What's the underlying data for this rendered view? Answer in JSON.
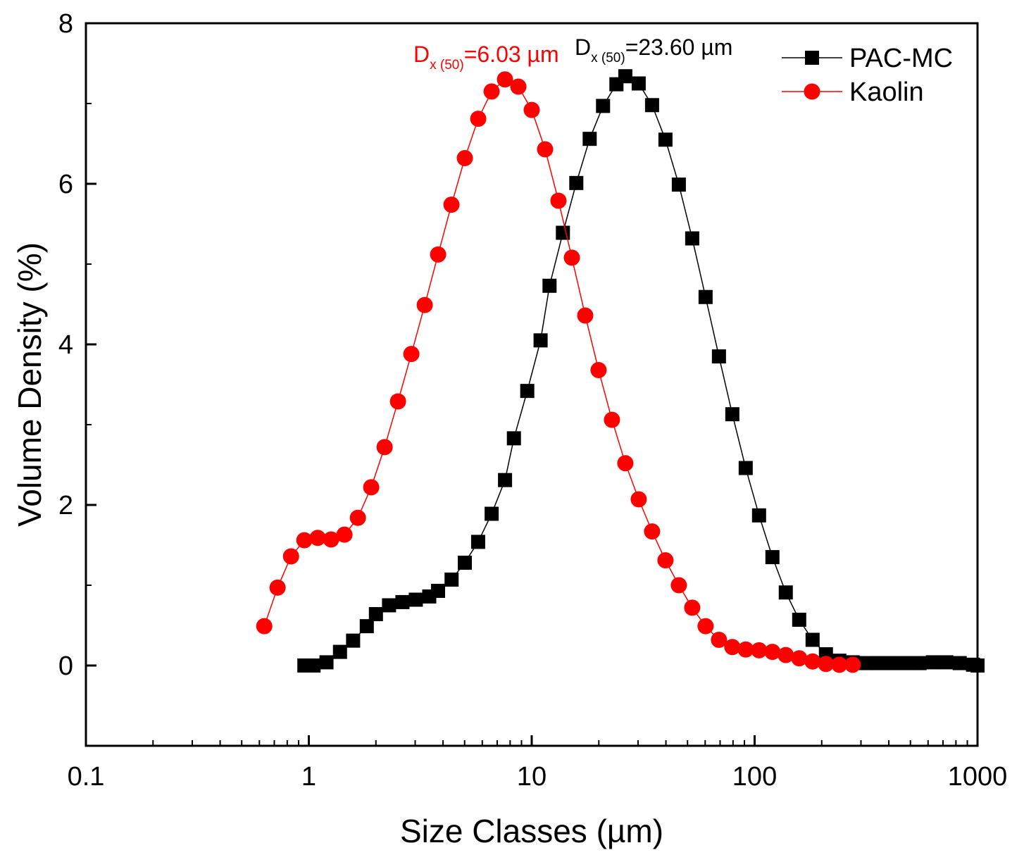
{
  "chart_data": {
    "type": "line",
    "title": "",
    "xlabel": "Size Classes (µm)",
    "ylabel": "Volume Density (%)",
    "xscale": "log",
    "xlim": [
      0.1,
      1000
    ],
    "ylim": [
      -1,
      8
    ],
    "x_ticks": [
      "0.1",
      "1",
      "10",
      "100",
      "1000"
    ],
    "y_ticks": [
      "0",
      "2",
      "4",
      "6",
      "8"
    ],
    "legend_position": "top-right",
    "series": [
      {
        "name": "PAC-MC",
        "color": "#000000",
        "marker": "square",
        "points": [
          [
            0.955,
            0.0
          ],
          [
            1.05,
            0.0
          ],
          [
            1.2,
            0.04
          ],
          [
            1.38,
            0.17
          ],
          [
            1.58,
            0.31
          ],
          [
            1.82,
            0.49
          ],
          [
            2.0,
            0.64
          ],
          [
            2.29,
            0.75
          ],
          [
            2.63,
            0.79
          ],
          [
            3.02,
            0.82
          ],
          [
            3.47,
            0.86
          ],
          [
            3.8,
            0.93
          ],
          [
            4.37,
            1.07
          ],
          [
            5.01,
            1.28
          ],
          [
            5.75,
            1.54
          ],
          [
            6.61,
            1.89
          ],
          [
            7.59,
            2.31
          ],
          [
            8.32,
            2.83
          ],
          [
            9.55,
            3.42
          ],
          [
            10.96,
            4.05
          ],
          [
            12.02,
            4.73
          ],
          [
            13.8,
            5.39
          ],
          [
            15.85,
            6.01
          ],
          [
            18.2,
            6.56
          ],
          [
            20.89,
            6.97
          ],
          [
            23.99,
            7.24
          ],
          [
            26.3,
            7.34
          ],
          [
            30.2,
            7.25
          ],
          [
            34.67,
            6.98
          ],
          [
            39.81,
            6.55
          ],
          [
            45.71,
            5.99
          ],
          [
            52.48,
            5.32
          ],
          [
            60.26,
            4.59
          ],
          [
            69.18,
            3.85
          ],
          [
            79.43,
            3.13
          ],
          [
            91.2,
            2.46
          ],
          [
            104.7,
            1.87
          ],
          [
            120.2,
            1.35
          ],
          [
            138.0,
            0.91
          ],
          [
            158.5,
            0.57
          ],
          [
            182.0,
            0.32
          ],
          [
            208.9,
            0.14
          ],
          [
            239.9,
            0.06
          ],
          [
            275.4,
            0.04
          ],
          [
            316.2,
            0.03
          ],
          [
            363.1,
            0.03
          ],
          [
            416.9,
            0.03
          ],
          [
            478.6,
            0.03
          ],
          [
            549.5,
            0.03
          ],
          [
            631.0,
            0.04
          ],
          [
            724.4,
            0.04
          ],
          [
            831.8,
            0.03
          ],
          [
            955.0,
            0.01
          ],
          [
            1000,
            0.0
          ]
        ]
      },
      {
        "name": "Kaolin",
        "color": "#ff0000",
        "marker": "circle",
        "points": [
          [
            0.631,
            0.49
          ],
          [
            0.724,
            0.97
          ],
          [
            0.832,
            1.36
          ],
          [
            0.955,
            1.56
          ],
          [
            1.096,
            1.59
          ],
          [
            1.259,
            1.57
          ],
          [
            1.445,
            1.63
          ],
          [
            1.66,
            1.84
          ],
          [
            1.905,
            2.22
          ],
          [
            2.188,
            2.72
          ],
          [
            2.512,
            3.29
          ],
          [
            2.884,
            3.88
          ],
          [
            3.311,
            4.49
          ],
          [
            3.802,
            5.12
          ],
          [
            4.365,
            5.74
          ],
          [
            5.012,
            6.32
          ],
          [
            5.754,
            6.81
          ],
          [
            6.607,
            7.15
          ],
          [
            7.586,
            7.3
          ],
          [
            8.71,
            7.21
          ],
          [
            10.0,
            6.92
          ],
          [
            11.48,
            6.43
          ],
          [
            13.18,
            5.79
          ],
          [
            15.14,
            5.08
          ],
          [
            17.38,
            4.36
          ],
          [
            19.95,
            3.68
          ],
          [
            22.91,
            3.06
          ],
          [
            26.3,
            2.52
          ],
          [
            30.2,
            2.07
          ],
          [
            34.67,
            1.67
          ],
          [
            39.81,
            1.31
          ],
          [
            45.71,
            1.0
          ],
          [
            52.48,
            0.72
          ],
          [
            60.26,
            0.49
          ],
          [
            69.18,
            0.32
          ],
          [
            79.43,
            0.23
          ],
          [
            91.2,
            0.2
          ],
          [
            104.7,
            0.19
          ],
          [
            120.2,
            0.17
          ],
          [
            138.0,
            0.13
          ],
          [
            158.5,
            0.09
          ],
          [
            182.0,
            0.05
          ],
          [
            208.9,
            0.02
          ],
          [
            239.9,
            0.01
          ],
          [
            275.4,
            0.01
          ]
        ]
      }
    ],
    "annotations": [
      {
        "series": "Kaolin",
        "color": "#ff0000",
        "prefix": "D",
        "subscript": "x (50)",
        "value_text": "=6.03 µm"
      },
      {
        "series": "PAC-MC",
        "color": "#000000",
        "prefix": "D",
        "subscript": "x (50)",
        "value_text": "=23.60 µm"
      }
    ]
  }
}
